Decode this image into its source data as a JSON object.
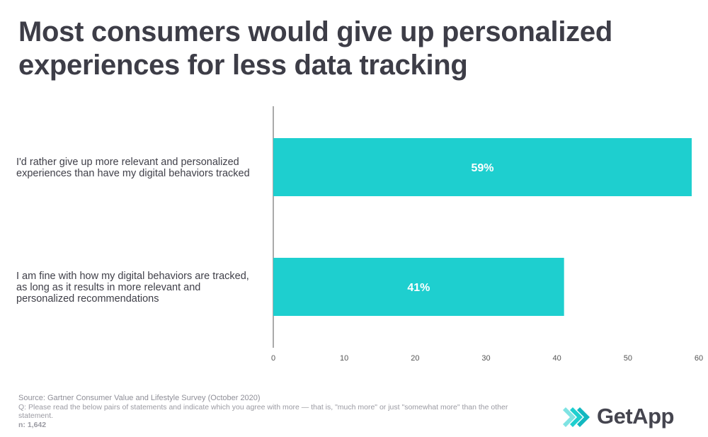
{
  "title": "Most consumers would give up personalized experiences for less data tracking",
  "chart_data": {
    "type": "bar",
    "orientation": "horizontal",
    "title": "Most consumers would give up personalized experiences for less data tracking",
    "categories": [
      "I'd rather give up more relevant and personalized experiences than have my digital behaviors tracked",
      "I am fine with how my digital behaviors are tracked, as long as it results in more relevant and personalized recommendations"
    ],
    "category_lines": [
      [
        "I'd rather give up more relevant and personalized",
        "experiences than have my digital behaviors tracked"
      ],
      [
        "I am fine with how my digital behaviors are tracked,",
        "as long as it results in more relevant and",
        "personalized recommendations"
      ]
    ],
    "values": [
      59,
      41
    ],
    "data_labels": [
      "59%",
      "41%"
    ],
    "xlim": [
      0,
      60
    ],
    "xticks": [
      0,
      10,
      20,
      30,
      40,
      50,
      60
    ],
    "grid": false,
    "bar_color": "#1ecfcf",
    "xlabel": "",
    "ylabel": ""
  },
  "footnotes": {
    "source": "Source: Gartner Consumer Value and Lifestyle Survey (October 2020)",
    "question": "Q: Please read the below pairs of statements and indicate which you agree with more — that is, \"much more\" or just \"somewhat more\" than the other statement.",
    "n": "n: 1,642"
  },
  "logo": {
    "text": "GetApp",
    "icon": "getapp-chevrons-icon",
    "colors": [
      "#1ecfcf",
      "#7fe3e3"
    ]
  }
}
